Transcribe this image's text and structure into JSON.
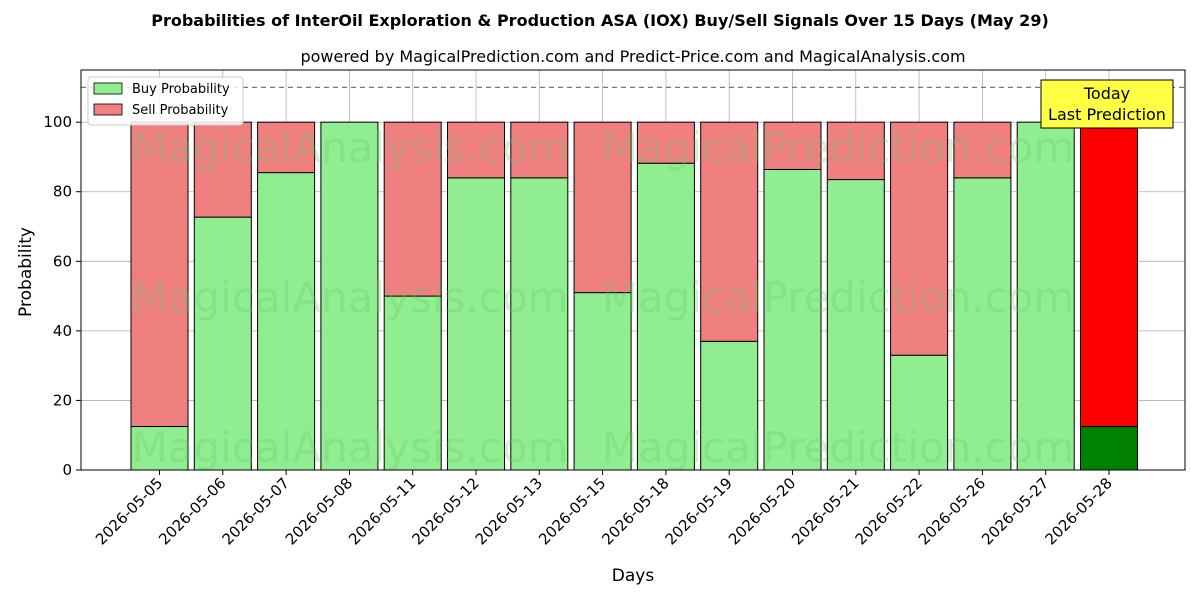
{
  "chart_data": {
    "type": "bar",
    "title": "Probabilities of InterOil Exploration & Production ASA (IOX) Buy/Sell Signals Over 15 Days (May 29)",
    "subtitle": "powered by MagicalPrediction.com and Predict-Price.com and MagicalAnalysis.com",
    "xlabel": "Days",
    "ylabel": "Probability",
    "ylim": [
      0,
      115
    ],
    "yticks": [
      0,
      20,
      40,
      60,
      80,
      100
    ],
    "reference_line": 110,
    "grid": true,
    "legend_position": "top-left",
    "categories": [
      "2026-05-05",
      "2026-05-06",
      "2026-05-07",
      "2026-05-08",
      "2026-05-11",
      "2026-05-12",
      "2026-05-13",
      "2026-05-15",
      "2026-05-18",
      "2026-05-19",
      "2026-05-20",
      "2026-05-21",
      "2026-05-22",
      "2026-05-26",
      "2026-05-27",
      "2026-05-28"
    ],
    "series": [
      {
        "name": "Buy Probability",
        "color": "#90ee90",
        "highlight_color": "#008000",
        "values": [
          12.5,
          72.7,
          85.5,
          100,
          50,
          84,
          84,
          51,
          88.2,
          37,
          86.4,
          83.5,
          33,
          84,
          100,
          12.5
        ]
      },
      {
        "name": "Sell Probability",
        "color": "#f08080",
        "highlight_color": "#ff0000",
        "values": [
          87.5,
          27.3,
          14.5,
          0,
          50,
          16,
          16,
          49,
          11.8,
          63,
          13.6,
          16.5,
          67,
          16,
          0,
          87.5
        ]
      }
    ],
    "annotation": {
      "lines": [
        "Today",
        "Last Prediction"
      ],
      "color": "#ffff44"
    },
    "watermarks": [
      "MagicalAnalysis.com",
      "MagicalPrediction.com"
    ]
  }
}
